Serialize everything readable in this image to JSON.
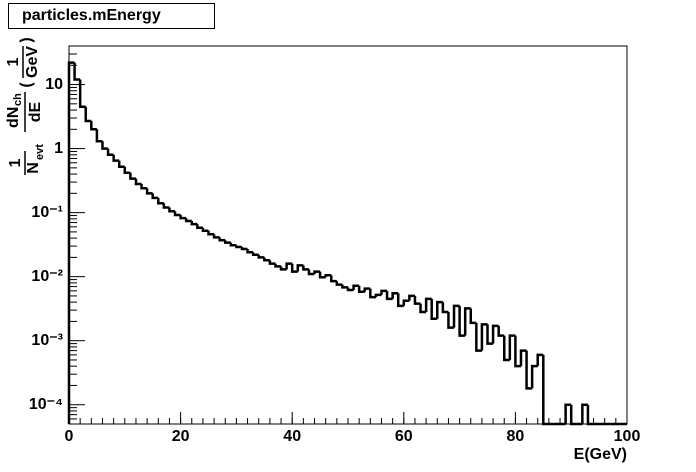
{
  "chart_data": {
    "type": "histogram",
    "title": "particles.mEnergy",
    "x_label": "E(GeV)",
    "y_label_parts": [
      "1",
      "N",
      "evt",
      "dN",
      "ch",
      "dE",
      "(",
      "1",
      "GeV",
      ")"
    ],
    "color": "#000000",
    "log_y": true,
    "bins": [
      0,
      1,
      2,
      3,
      4,
      5,
      6,
      7,
      8,
      9,
      10,
      11,
      12,
      13,
      14,
      15,
      16,
      17,
      18,
      19,
      20,
      21,
      22,
      23,
      24,
      25,
      26,
      27,
      28,
      29,
      30,
      31,
      32,
      33,
      34,
      35,
      36,
      37,
      38,
      39,
      40,
      41,
      42,
      43,
      44,
      45,
      46,
      47,
      48,
      49,
      50,
      51,
      52,
      53,
      54,
      55,
      56,
      57,
      58,
      59,
      60,
      61,
      62,
      63,
      64,
      65,
      66,
      67,
      68,
      69,
      70,
      71,
      72,
      73,
      74,
      75,
      76,
      77,
      78,
      79,
      80,
      81,
      82,
      83,
      84,
      85,
      86,
      87,
      88,
      89,
      90,
      91,
      92,
      93,
      94,
      95,
      96,
      97,
      98,
      99,
      100
    ],
    "values": [
      22,
      12,
      4.5,
      2.7,
      2.0,
      1.3,
      1.0,
      0.8,
      0.65,
      0.52,
      0.42,
      0.34,
      0.28,
      0.24,
      0.2,
      0.17,
      0.14,
      0.12,
      0.105,
      0.092,
      0.082,
      0.074,
      0.066,
      0.058,
      0.052,
      0.046,
      0.041,
      0.037,
      0.034,
      0.031,
      0.029,
      0.027,
      0.024,
      0.022,
      0.02,
      0.018,
      0.016,
      0.0145,
      0.013,
      0.016,
      0.012,
      0.015,
      0.013,
      0.011,
      0.012,
      0.0098,
      0.0105,
      0.0085,
      0.0075,
      0.0068,
      0.0062,
      0.0072,
      0.0058,
      0.0065,
      0.0048,
      0.0052,
      0.006,
      0.0045,
      0.0055,
      0.0035,
      0.0042,
      0.005,
      0.0038,
      0.0028,
      0.0045,
      0.0022,
      0.004,
      0.0028,
      0.0016,
      0.0035,
      0.0012,
      0.0032,
      0.0019,
      0.0007,
      0.0018,
      0.0009,
      0.0017,
      0.0012,
      0.0005,
      0.0012,
      0.0004,
      0.0007,
      0.00018,
      0.0004,
      0.0006,
      0,
      0,
      0,
      0,
      0.0001,
      0,
      0,
      0.0001,
      0,
      0,
      0,
      0,
      0,
      0,
      0
    ],
    "xlim": [
      0,
      100
    ],
    "xticks": [
      0,
      20,
      40,
      60,
      80,
      100
    ],
    "ylim": [
      5e-05,
      40
    ],
    "yticks": [
      {
        "value": 0.0001,
        "label": "10⁻⁴"
      },
      {
        "value": 0.001,
        "label": "10⁻³"
      },
      {
        "value": 0.01,
        "label": "10⁻²"
      },
      {
        "value": 0.1,
        "label": "10⁻¹"
      },
      1,
      10
    ]
  }
}
